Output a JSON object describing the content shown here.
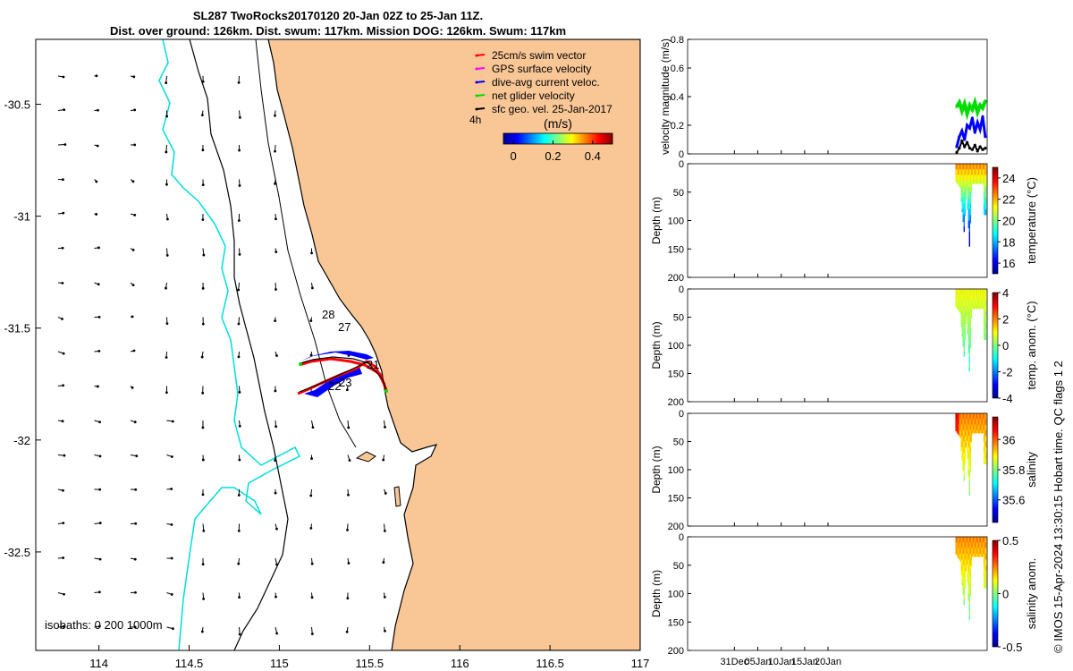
{
  "header": {
    "title_line1": "SL287 TwoRocks20170120 20-Jan 02Z to 25-Jan 11Z.",
    "title_line2": "Dist. over ground: 126km. Dist. swum: 117km. Mission DOG: 126km. Swum: 117km"
  },
  "colors": {
    "land": "#F9C696",
    "sea": "#FFFFFF",
    "coastline": "#000000",
    "isobath_200": "#00DDDD",
    "swim": "#FF0000",
    "gps": "#FF00FF",
    "dive_avg": "#0000FF",
    "net": "#00DD00",
    "sfc_geo": "#000000"
  },
  "map": {
    "xlim": [
      113.65,
      117
    ],
    "ylim": [
      -32.94,
      -30.21
    ],
    "xticks": [
      "114",
      "114.5",
      "115",
      "115.5",
      "116",
      "116.5",
      "117"
    ],
    "yticks": [
      "-30.5",
      "-31",
      "-31.5",
      "-32",
      "-32.5"
    ],
    "legend": [
      {
        "label": "25cm/s swim vector",
        "color": "#FF0000"
      },
      {
        "label": "GPS surface velocity",
        "color": "#FF00FF"
      },
      {
        "label": "dive-avg current veloc.",
        "color": "#0000FF"
      },
      {
        "label": "net glider velocity",
        "color": "#00DD00"
      },
      {
        "label": "sfc geo. vel. 25-Jan-2017",
        "color": "#000000"
      }
    ],
    "duration_label": "4h",
    "colorbar": {
      "title": "(m/s)",
      "ticks": [
        "0",
        "0.2",
        "0.4"
      ],
      "range": [
        -0.05,
        0.5
      ]
    },
    "isobath_label": "isobaths: 0   200  1000m",
    "track_labels": [
      "28",
      "27",
      "21",
      "22",
      "23"
    ]
  },
  "chart_data": [
    {
      "type": "line",
      "panel": "velocity",
      "ylabel": "velocity magnitude (m/s)",
      "ylim": [
        0,
        0.8
      ],
      "yticks": [
        "0",
        "0.2",
        "0.4",
        "0.6",
        "0.8"
      ],
      "series": [
        {
          "color": "#00DD00",
          "values": [
            0.33,
            0.36,
            0.3,
            0.35,
            0.28,
            0.34,
            0.31,
            0.36,
            0.29,
            0.34,
            0.32,
            0.37
          ]
        },
        {
          "color": "#0000FF",
          "values": [
            0.05,
            0.12,
            0.16,
            0.1,
            0.2,
            0.18,
            0.25,
            0.15,
            0.22,
            0.17,
            0.26,
            0.12
          ]
        },
        {
          "color": "#000000",
          "values": [
            0.01,
            0.04,
            0.09,
            0.05,
            0.08,
            0.04,
            0.03,
            0.06,
            0.02,
            0.05,
            0.03,
            0.04
          ]
        }
      ]
    },
    {
      "type": "heatmap",
      "panel": "temperature",
      "ylabel": "Depth (m)",
      "cbar_label": "temperature (°C)",
      "cbar_ticks": [
        "24",
        "22",
        "20",
        "18",
        "16"
      ],
      "cbar_range": [
        15,
        25
      ],
      "ylim": [
        0,
        200
      ],
      "yticks": [
        "0",
        "50",
        "100",
        "150",
        "200"
      ]
    },
    {
      "type": "heatmap",
      "panel": "temp_anomaly",
      "ylabel": "Depth (m)",
      "cbar_label": "temp. anom. (°C)",
      "cbar_ticks": [
        "4",
        "2",
        "0",
        "-2",
        "-4"
      ],
      "cbar_range": [
        -4,
        4
      ],
      "ylim": [
        0,
        200
      ],
      "yticks": [
        "0",
        "50",
        "100",
        "150",
        "200"
      ]
    },
    {
      "type": "heatmap",
      "panel": "salinity",
      "ylabel": "Depth (m)",
      "cbar_label": "salinity",
      "cbar_ticks": [
        "36",
        "35.8",
        "35.6"
      ],
      "cbar_range": [
        35.45,
        36.15
      ],
      "ylim": [
        0,
        200
      ],
      "yticks": [
        "0",
        "50",
        "100",
        "150",
        "200"
      ]
    },
    {
      "type": "heatmap",
      "panel": "salinity_anomaly",
      "ylabel": "Depth (m)",
      "cbar_label": "salinity anom.",
      "cbar_ticks": [
        "0.5",
        "0",
        "-0.5"
      ],
      "cbar_range": [
        -0.5,
        0.5
      ],
      "ylim": [
        0,
        200
      ],
      "yticks": [
        "0",
        "50",
        "100",
        "150",
        "200"
      ]
    }
  ],
  "time_axis": {
    "ticks": [
      "31Dec",
      "05Jan",
      "10Jan",
      "15Jan",
      "20Jan"
    ]
  },
  "credit": "© IMOS 15-Apr-2024 13:30:15 Hobart time. QC flags 1  2"
}
